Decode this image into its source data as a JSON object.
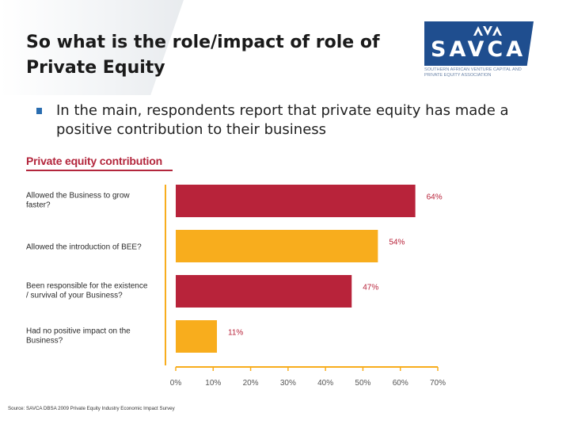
{
  "slide": {
    "title": "So what is the role/impact of role of Private Equity",
    "bullet": "In the main, respondents report that private equity has made a positive contribution to their business",
    "source": "Source: SAVCA DBSA 2009 Private Equity Industry Economic Impact Survey"
  },
  "logo": {
    "name": "SAVCA",
    "tagline": "Southern African Venture Capital and Private Equity Association"
  },
  "chart_data": {
    "type": "bar",
    "orientation": "horizontal",
    "title": "Private equity contribution",
    "categories": [
      "Allowed the Business to grow faster?",
      "Allowed the introduction of BEE?",
      "Been responsible for the existence / survival of your Business?",
      "Had no positive impact on the Business?"
    ],
    "values": [
      64,
      54,
      47,
      11
    ],
    "value_labels": [
      "64%",
      "54%",
      "47%",
      "11%"
    ],
    "bar_colors": [
      "#b8233a",
      "#f8ad1d",
      "#b8233a",
      "#f8ad1d"
    ],
    "xlim": [
      0,
      70
    ],
    "xticks": [
      "0%",
      "10%",
      "20%",
      "30%",
      "40%",
      "50%",
      "60%",
      "70%"
    ],
    "grid": false,
    "colors": {
      "axis": "#f8ad1d",
      "label": "#b8233a"
    }
  }
}
